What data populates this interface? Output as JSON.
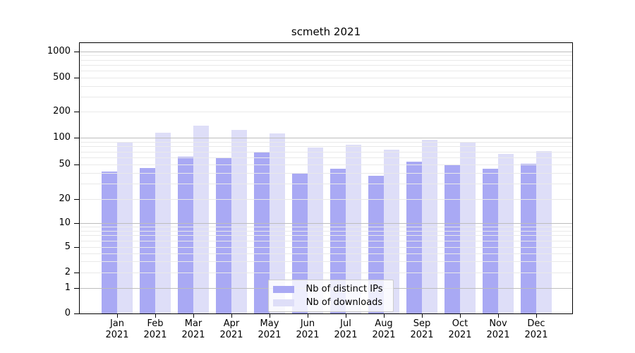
{
  "title": "scmeth 2021",
  "legend": {
    "items": [
      {
        "label": "Nb of distinct IPs",
        "color": "#a9a9f4"
      },
      {
        "label": "Nb of downloads",
        "color": "#dedef8"
      }
    ]
  },
  "chart_data": {
    "type": "bar",
    "title": "scmeth 2021",
    "categories": [
      "Jan 2021",
      "Feb 2021",
      "Mar 2021",
      "Apr 2021",
      "May 2021",
      "Jun 2021",
      "Jul 2021",
      "Aug 2021",
      "Sep 2021",
      "Oct 2021",
      "Nov 2021",
      "Dec 2021"
    ],
    "series": [
      {
        "name": "Nb of distinct IPs",
        "color": "#a9a9f4",
        "values": [
          42,
          46,
          61,
          60,
          68,
          39,
          45,
          37,
          54,
          50,
          45,
          51
        ]
      },
      {
        "name": "Nb of downloads",
        "color": "#dedef8",
        "values": [
          90,
          114,
          138,
          124,
          113,
          78,
          83,
          74,
          95,
          90,
          66,
          71
        ]
      }
    ],
    "xlabel": "",
    "ylabel": "",
    "yscale": "symlog",
    "ylim": [
      0,
      1500
    ],
    "yticks": [
      0,
      1,
      2,
      5,
      10,
      20,
      50,
      100,
      200,
      500,
      1000
    ],
    "grid": true,
    "grid_minor": [
      2,
      3,
      4,
      5,
      6,
      7,
      8,
      9,
      20,
      30,
      40,
      50,
      60,
      70,
      80,
      90,
      200,
      300,
      400,
      500,
      600,
      700,
      800,
      900
    ],
    "grid_major": [
      1,
      10,
      100,
      1000
    ],
    "legend_position": "lower center inside"
  }
}
